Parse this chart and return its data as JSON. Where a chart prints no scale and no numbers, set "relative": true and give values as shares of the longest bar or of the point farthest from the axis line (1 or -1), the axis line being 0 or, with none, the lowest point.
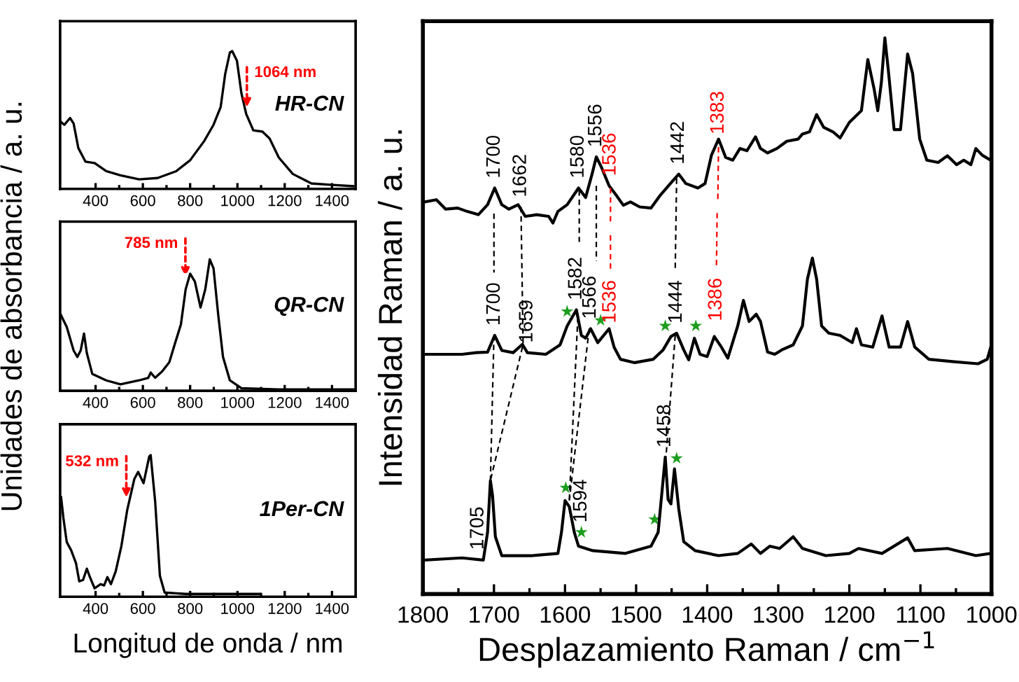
{
  "chart_data": [
    {
      "type": "line",
      "relative": true,
      "tick_labels": "x",
      "xlim": [
        250,
        1500
      ],
      "xticks": [
        400,
        600,
        800,
        1000,
        1200,
        1400
      ],
      "series": [
        {
          "color": "#000000",
          "x": [
            254,
            268,
            292,
            307,
            327,
            357,
            396,
            445,
            505,
            584,
            662,
            741,
            800,
            859,
            899,
            929,
            948,
            968,
            978,
            998,
            1017,
            1037,
            1067,
            1106,
            1136,
            1175,
            1234,
            1313,
            1392,
            1490
          ],
          "values": [
            0.48,
            0.46,
            0.51,
            0.47,
            0.29,
            0.19,
            0.18,
            0.12,
            0.09,
            0.06,
            0.07,
            0.12,
            0.2,
            0.34,
            0.46,
            0.59,
            0.83,
            0.99,
            1.0,
            0.93,
            0.69,
            0.54,
            0.42,
            0.41,
            0.36,
            0.22,
            0.1,
            0.03,
            0.02,
            0.01
          ]
        }
      ],
      "annotations": [
        {
          "text": "1064 nm",
          "x": 1040,
          "y": 0.56
        },
        "HR-CN"
      ]
    },
    {
      "type": "line",
      "relative": true,
      "tick_labels": "x",
      "xlim": [
        250,
        1500
      ],
      "xticks": [
        400,
        600,
        800,
        1000,
        1200,
        1400
      ],
      "ylabel": "Unidades de absorbancia / a. u.",
      "series": [
        {
          "color": "#000000",
          "x": [
            254,
            278,
            307,
            323,
            337,
            351,
            363,
            386,
            445,
            505,
            584,
            623,
            633,
            652,
            682,
            712,
            737,
            761,
            781,
            800,
            820,
            844,
            864,
            883,
            899,
            919,
            939,
            968,
            1017,
            1175,
            1490
          ],
          "values": [
            0.57,
            0.48,
            0.3,
            0.25,
            0.3,
            0.43,
            0.28,
            0.12,
            0.07,
            0.04,
            0.07,
            0.09,
            0.13,
            0.09,
            0.14,
            0.21,
            0.36,
            0.5,
            0.77,
            0.89,
            0.83,
            0.63,
            0.77,
            1.0,
            0.93,
            0.57,
            0.25,
            0.07,
            0.01,
            0,
            0
          ]
        }
      ],
      "annotations": [
        {
          "text": "785 nm",
          "x": 780,
          "y": 0.84
        },
        "QR-CN"
      ]
    },
    {
      "type": "line",
      "relative": true,
      "tick_labels": "x",
      "xlim": [
        250,
        1500
      ],
      "xticks": [
        400,
        600,
        800,
        1000,
        1200,
        1400
      ],
      "xlabel": "Longitud de onda / nm",
      "series": [
        {
          "color": "#000000",
          "x": [
            254,
            264,
            278,
            297,
            317,
            331,
            347,
            363,
            376,
            396,
            422,
            436,
            450,
            465,
            485,
            509,
            534,
            564,
            580,
            603,
            627,
            633,
            652,
            672,
            692,
            781,
            1096
          ],
          "values": [
            0.7,
            0.55,
            0.38,
            0.32,
            0.23,
            0.1,
            0.11,
            0.19,
            0.13,
            0.05,
            0.08,
            0.07,
            0.13,
            0.08,
            0.17,
            0.35,
            0.61,
            0.83,
            0.88,
            0.8,
            0.99,
            1.0,
            0.67,
            0.14,
            0.02,
            0.01,
            0.01
          ]
        }
      ],
      "annotations": [
        {
          "text": "532 nm",
          "x": 530,
          "y": 0.67
        },
        "1Per-CN"
      ]
    },
    {
      "type": "line",
      "relative": true,
      "tick_labels": "x",
      "xlim": [
        1800,
        1000
      ],
      "xticks": [
        1800,
        1700,
        1600,
        1500,
        1400,
        1300,
        1200,
        1100,
        1000
      ],
      "xlabel": "Desplazamiento Raman / cm$^{−1}$",
      "ylabel": "Intensidad Raman / a. u.",
      "series": [
        {
          "color": "#000000",
          "x": [
            1797,
            1781,
            1768,
            1751,
            1738,
            1722,
            1709,
            1699,
            1689,
            1679,
            1666,
            1656,
            1640,
            1623,
            1617,
            1610,
            1597,
            1581,
            1571,
            1562,
            1556,
            1549,
            1538,
            1528,
            1518,
            1508,
            1495,
            1479,
            1466,
            1449,
            1440,
            1430,
            1413,
            1403,
            1394,
            1384,
            1374,
            1364,
            1354,
            1344,
            1332,
            1325,
            1315,
            1302,
            1288,
            1272,
            1266,
            1256,
            1246,
            1236,
            1223,
            1213,
            1200,
            1183,
            1174,
            1165,
            1160,
            1155,
            1150,
            1145,
            1137,
            1128,
            1118,
            1111,
            1101,
            1091,
            1075,
            1062,
            1049,
            1039,
            1029,
            1022,
            1013,
            1001
          ],
          "values": [
            0.705,
            0.709,
            0.692,
            0.694,
            0.688,
            0.682,
            0.7,
            0.73,
            0.7,
            0.692,
            0.7,
            0.679,
            0.682,
            0.679,
            0.667,
            0.688,
            0.7,
            0.73,
            0.713,
            0.755,
            0.786,
            0.768,
            0.734,
            0.717,
            0.699,
            0.705,
            0.696,
            0.694,
            0.717,
            0.742,
            0.755,
            0.738,
            0.73,
            0.738,
            0.789,
            0.818,
            0.785,
            0.78,
            0.801,
            0.797,
            0.822,
            0.801,
            0.793,
            0.801,
            0.814,
            0.818,
            0.827,
            0.831,
            0.862,
            0.839,
            0.831,
            0.82,
            0.848,
            0.869,
            0.961,
            0.907,
            0.869,
            0.919,
            1.0,
            0.94,
            0.835,
            0.835,
            0.971,
            0.936,
            0.818,
            0.78,
            0.776,
            0.788,
            0.772,
            0.78,
            0.772,
            0.801,
            0.789,
            0.78
          ]
        },
        {
          "color": "#000000",
          "x": [
            1797,
            1745,
            1725,
            1709,
            1699,
            1689,
            1673,
            1660,
            1653,
            1627,
            1607,
            1597,
            1584,
            1577,
            1571,
            1564,
            1554,
            1538,
            1531,
            1522,
            1502,
            1476,
            1462,
            1451,
            1443,
            1433,
            1426,
            1418,
            1410,
            1400,
            1390,
            1380,
            1371,
            1357,
            1349,
            1341,
            1331,
            1325,
            1315,
            1305,
            1295,
            1279,
            1266,
            1259,
            1252,
            1246,
            1239,
            1229,
            1213,
            1196,
            1190,
            1183,
            1167,
            1154,
            1144,
            1128,
            1118,
            1108,
            1088,
            1055,
            1019,
            1006,
            1001
          ],
          "values": [
            0.431,
            0.431,
            0.434,
            0.435,
            0.465,
            0.438,
            0.434,
            0.449,
            0.434,
            0.431,
            0.448,
            0.482,
            0.511,
            0.465,
            0.46,
            0.477,
            0.452,
            0.477,
            0.444,
            0.422,
            0.416,
            0.422,
            0.439,
            0.463,
            0.469,
            0.439,
            0.421,
            0.46,
            0.431,
            0.427,
            0.463,
            0.444,
            0.424,
            0.482,
            0.528,
            0.49,
            0.503,
            0.49,
            0.435,
            0.431,
            0.439,
            0.448,
            0.482,
            0.566,
            0.604,
            0.566,
            0.482,
            0.469,
            0.465,
            0.452,
            0.477,
            0.448,
            0.444,
            0.5,
            0.444,
            0.444,
            0.49,
            0.444,
            0.422,
            0.418,
            0.414,
            0.422,
            0.444
          ]
        },
        {
          "color": "#000000",
          "x": [
            1797,
            1745,
            1715,
            1709,
            1705,
            1702,
            1698,
            1689,
            1646,
            1610,
            1605,
            1600,
            1594,
            1587,
            1581,
            1561,
            1515,
            1479,
            1469,
            1459,
            1455,
            1451,
            1446,
            1440,
            1433,
            1417,
            1384,
            1357,
            1338,
            1325,
            1312,
            1298,
            1279,
            1266,
            1233,
            1200,
            1187,
            1154,
            1118,
            1108,
            1062,
            1022,
            1001
          ],
          "values": [
            0.061,
            0.065,
            0.061,
            0.111,
            0.204,
            0.177,
            0.103,
            0.069,
            0.069,
            0.073,
            0.111,
            0.168,
            0.157,
            0.111,
            0.086,
            0.078,
            0.073,
            0.086,
            0.111,
            0.246,
            0.17,
            0.162,
            0.225,
            0.153,
            0.094,
            0.078,
            0.069,
            0.073,
            0.09,
            0.073,
            0.086,
            0.082,
            0.103,
            0.082,
            0.069,
            0.073,
            0.082,
            0.073,
            0.101,
            0.078,
            0.082,
            0.069,
            0.073
          ]
        },
        {
          "type": "line",
          "line_style": "dashed",
          "color": "#000000",
          "x": [
            1700,
            1700,
            null,
            1700,
            1705
          ],
          "values": [
            0.684,
            0.578,
            null,
            0.465,
            0.204
          ]
        },
        {
          "type": "line",
          "line_style": "dashed",
          "color": "#000000",
          "x": [
            1662,
            1659,
            1705
          ],
          "values": [
            0.696,
            0.449,
            0.204
          ]
        },
        {
          "type": "line",
          "line_style": "dashed",
          "color": "#000000",
          "x": [
            1580,
            1580,
            null,
            1582,
            1594
          ],
          "values": [
            0.726,
            0.633,
            null,
            0.498,
            0.168
          ]
        },
        {
          "type": "line",
          "line_style": "dashed",
          "color": "#000000",
          "x": [
            1556,
            1556,
            null,
            1566,
            1594
          ],
          "values": [
            0.734,
            0.599,
            null,
            0.477,
            0.168
          ]
        },
        {
          "type": "line",
          "line_style": "dashed",
          "color": "#ff0000",
          "name": "1536",
          "x": [
            1536,
            1536
          ],
          "values": [
            0.67,
            0.734
          ]
        },
        {
          "type": "line",
          "line_style": "dashed",
          "color": "#ff0000",
          "name": "1536",
          "x": [
            1536,
            1536
          ],
          "values": [
            0.645,
            0.582
          ]
        },
        {
          "type": "line",
          "line_style": "dashed",
          "color": "#000000",
          "x": [
            1443,
            1445,
            null,
            1445,
            1458
          ],
          "values": [
            0.747,
            0.582,
            null,
            0.465,
            0.246
          ]
        },
        {
          "type": "line",
          "line_style": "dashed",
          "color": "#ff0000",
          "name": "1383",
          "x": [
            1385,
            1384
          ],
          "values": [
            0.71,
            0.809
          ]
        },
        {
          "type": "line",
          "line_style": "dashed",
          "color": "#ff0000",
          "name": "1386",
          "x": [
            1386,
            1387
          ],
          "values": [
            0.685,
            0.586
          ]
        },
        {
          "type": "scatter",
          "marker": "star",
          "color": "#1e9e1e",
          "x": [
            1597,
            1550,
            1459,
            1416,
            1599,
            1577,
            1474,
            1443
          ],
          "values": [
            0.508,
            0.492,
            0.482,
            0.482,
            0.191,
            0.111,
            0.134,
            0.244
          ]
        }
      ],
      "annotations": [
        {
          "text": "1700",
          "x": 1699,
          "y": 0.73
        },
        {
          "text": "1662",
          "x": 1662,
          "y": 0.696
        },
        {
          "text": "1580",
          "x": 1581,
          "y": 0.73
        },
        {
          "text": "1556",
          "x": 1556,
          "y": 0.786
        },
        {
          "text": "1442",
          "x": 1440,
          "y": 0.755
        },
        {
          "text": "1700",
          "x": 1699,
          "y": 0.465
        },
        {
          "text": "1659",
          "x": 1653,
          "y": 0.434
        },
        {
          "text": "1582",
          "x": 1584,
          "y": 0.511
        },
        {
          "text": "1566",
          "x": 1564,
          "y": 0.477
        },
        {
          "text": "1444",
          "x": 1443,
          "y": 0.469
        },
        {
          "text": "1705",
          "x": 1722,
          "y": 0.062
        },
        {
          "text": "1594",
          "x": 1577,
          "y": 0.111
        },
        {
          "text": "1458",
          "x": 1459,
          "y": 0.246
        }
      ]
    }
  ]
}
